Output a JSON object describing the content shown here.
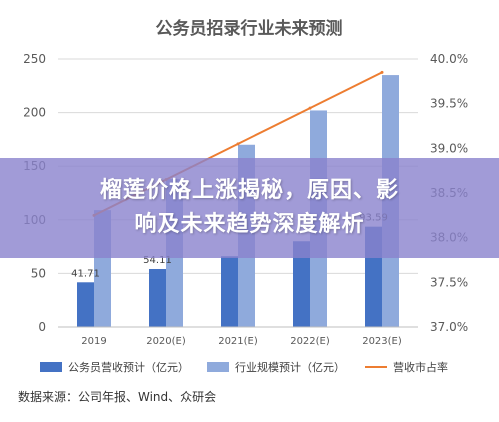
{
  "chart_data": {
    "type": "bar",
    "title": "公务员招录行业未来预测",
    "categories": [
      "2019",
      "2020(E)",
      "2021(E)",
      "2022(E)",
      "2023(E)"
    ],
    "series": [
      {
        "name": "公务员营收预计（亿元）",
        "kind": "bar",
        "axis": "left",
        "color": "#4472c4",
        "values": [
          41.71,
          54.11,
          66,
          80,
          93.59
        ],
        "data_labels": [
          "41.71",
          "54.11",
          "",
          "",
          "93.59"
        ]
      },
      {
        "name": "行业规模预计（亿元）",
        "kind": "bar",
        "axis": "left",
        "color": "#8faadc",
        "values": [
          109,
          138,
          170,
          202,
          235
        ]
      },
      {
        "name": "营收市占率",
        "kind": "line",
        "axis": "right",
        "color": "#ed7d31",
        "values": [
          38.25,
          38.65,
          39.05,
          39.45,
          39.85
        ]
      }
    ],
    "y_left": {
      "lim": [
        0,
        250
      ],
      "ticks": [
        "0",
        "50",
        "100",
        "150",
        "200",
        "250"
      ]
    },
    "y_right": {
      "lim": [
        37.0,
        40.0
      ],
      "ticks": [
        "37.0%",
        "37.5%",
        "38.0%",
        "38.5%",
        "39.0%",
        "39.5%",
        "40.0%"
      ]
    },
    "grid": true,
    "legend_position": "bottom"
  },
  "overlay": {
    "line1": "榴莲价格上涨揭秘，原因、影",
    "line2": "响及未来趋势深度解析"
  },
  "source": "数据来源：公司年报、Wind、众研会"
}
